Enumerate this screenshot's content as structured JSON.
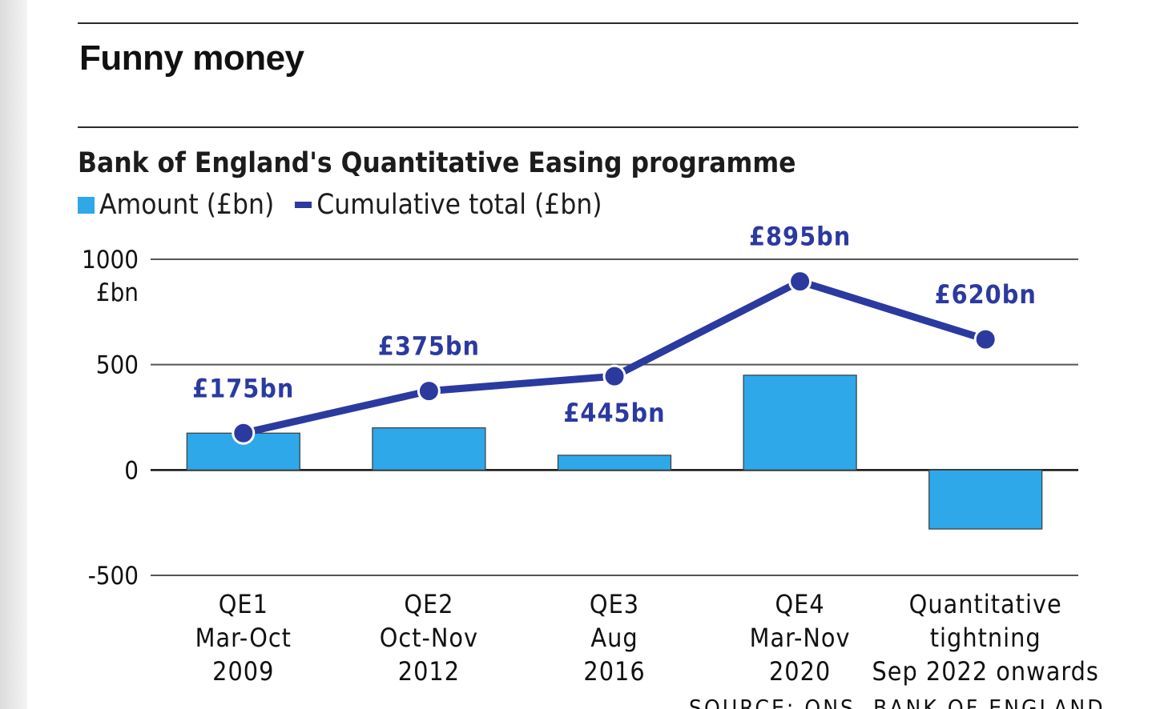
{
  "headline": "Funny money",
  "source": "SOURCE: ONS, BANK OF ENGLAND",
  "colors": {
    "bar": "#2ea8e8",
    "line": "#2b3a9f",
    "text": "#1c1c1c",
    "grid": "#555555"
  },
  "chart_data": {
    "type": "bar",
    "title": "Bank of England's Quantitative Easing programme",
    "y_unit_label": "£bn",
    "ylim": [
      -500,
      1000
    ],
    "yticks": [
      "1000",
      "500",
      "0",
      "-500"
    ],
    "ytick_values": [
      1000,
      500,
      0,
      -500
    ],
    "categories": [
      [
        "QE1",
        "Mar-Oct",
        "2009"
      ],
      [
        "QE2",
        "Oct-Nov",
        "2012"
      ],
      [
        "QE3",
        "Aug",
        "2016"
      ],
      [
        "QE4",
        "Mar-Nov",
        "2020"
      ],
      [
        "Quantitative",
        "tightning",
        "Sep 2022 onwards"
      ]
    ],
    "series": [
      {
        "name": "Amount (£bn)",
        "type": "bar",
        "values": [
          175,
          200,
          70,
          450,
          -280
        ]
      },
      {
        "name": "Cumulative total (£bn)",
        "type": "line",
        "values": [
          175,
          375,
          445,
          895,
          620
        ]
      }
    ],
    "data_labels": [
      "£175bn",
      "£375bn",
      "£445bn",
      "£895bn",
      "£620bn"
    ]
  }
}
